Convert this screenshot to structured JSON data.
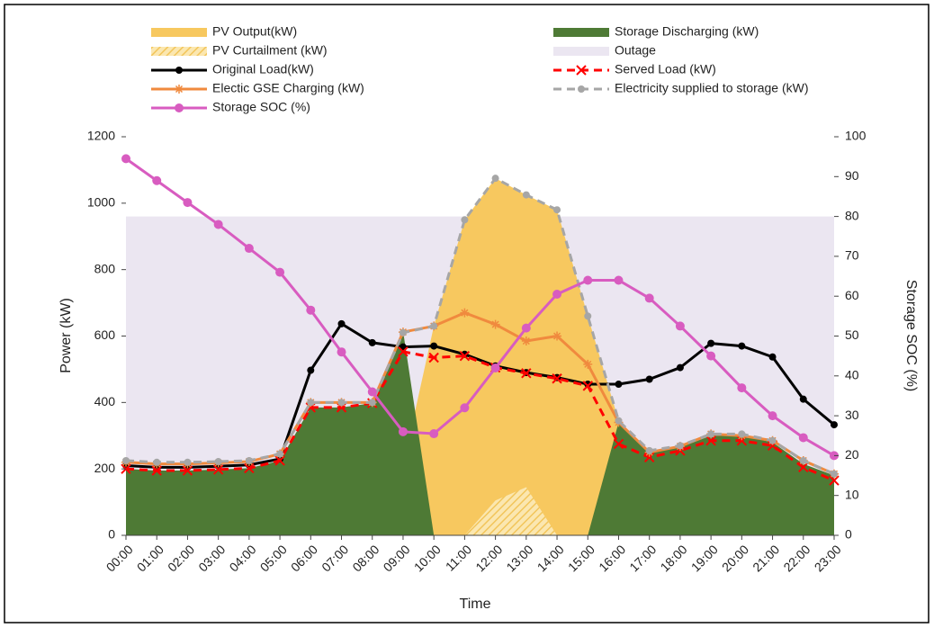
{
  "chart_data": {
    "type": "combo",
    "xlabel": "Time",
    "ylabel": "Power (kW)",
    "y2label": "Storage SOC (%)",
    "categories": [
      "00:00",
      "01:00",
      "02:00",
      "03:00",
      "04:00",
      "05:00",
      "06:00",
      "07:00",
      "08:00",
      "09:00",
      "10:00",
      "11:00",
      "12:00",
      "13:00",
      "14:00",
      "15:00",
      "16:00",
      "17:00",
      "18:00",
      "19:00",
      "20:00",
      "21:00",
      "22:00",
      "23:00"
    ],
    "ylim": [
      0,
      1200
    ],
    "yticks": [
      0,
      200,
      400,
      600,
      800,
      1000,
      1200
    ],
    "y2lim": [
      0,
      100
    ],
    "y2ticks": [
      0,
      10,
      20,
      30,
      40,
      50,
      60,
      70,
      80,
      90,
      100
    ],
    "series": [
      {
        "name": "PV Output(kW)",
        "kind": "area",
        "color": "#f7c85f",
        "values": [
          0,
          0,
          0,
          0,
          0,
          0,
          0,
          0,
          0,
          210,
          630,
          950,
          1075,
          1025,
          980,
          660,
          345,
          80,
          0,
          0,
          0,
          0,
          0,
          0
        ]
      },
      {
        "name": "Storage Discharging (kW)",
        "kind": "area",
        "color": "#4e7a35",
        "values": [
          200,
          195,
          195,
          198,
          202,
          225,
          385,
          385,
          398,
          615,
          0,
          0,
          0,
          0,
          0,
          0,
          340,
          250,
          265,
          300,
          300,
          280,
          215,
          180
        ]
      },
      {
        "name": "PV Curtailment (kW)",
        "kind": "area",
        "stack": true,
        "color": "#f7d98a",
        "values": [
          0,
          0,
          0,
          0,
          0,
          0,
          0,
          0,
          0,
          0,
          0,
          0,
          105,
          145,
          0,
          0,
          0,
          0,
          0,
          0,
          0,
          0,
          0,
          0
        ]
      },
      {
        "name": "Outage",
        "kind": "band",
        "color": "#ebe6f1",
        "value": 960
      },
      {
        "name": "Original Load(kW)",
        "kind": "line",
        "marker": "circle",
        "color": "#000000",
        "values": [
          210,
          205,
          205,
          208,
          212,
          230,
          497,
          637,
          580,
          567,
          570,
          545,
          510,
          490,
          475,
          455,
          455,
          470,
          505,
          578,
          570,
          537,
          410,
          333
        ]
      },
      {
        "name": "Served Load (kW)",
        "kind": "line",
        "marker": "x",
        "dashed": true,
        "color": "#ff0000",
        "values": [
          200,
          195,
          195,
          198,
          202,
          225,
          385,
          385,
          398,
          553,
          535,
          540,
          505,
          488,
          472,
          450,
          275,
          235,
          255,
          285,
          285,
          270,
          205,
          165
        ]
      },
      {
        "name": "Electic GSE Charging (kW)",
        "kind": "line",
        "marker": "asterisk",
        "color": "#f08a3e",
        "values": [
          220,
          215,
          215,
          218,
          222,
          245,
          400,
          400,
          400,
          612,
          630,
          670,
          635,
          585,
          600,
          515,
          340,
          250,
          268,
          305,
          300,
          285,
          225,
          185
        ]
      },
      {
        "name": "Electricity supplied to storage (kW)",
        "kind": "line",
        "marker": "circle",
        "dashed": true,
        "color": "#a6a6a6",
        "values": [
          225,
          220,
          220,
          222,
          225,
          245,
          400,
          400,
          400,
          610,
          630,
          950,
          1075,
          1025,
          980,
          660,
          345,
          255,
          270,
          305,
          305,
          285,
          225,
          185
        ]
      },
      {
        "name": "Storage SOC (%)",
        "kind": "line",
        "marker": "circle",
        "axis": "y2",
        "color": "#d85cc0",
        "values": [
          94.5,
          89,
          83.5,
          78,
          72,
          66,
          56.5,
          46,
          36,
          26,
          25.5,
          32,
          42,
          52,
          60.5,
          64,
          64,
          59.5,
          52.5,
          45,
          37,
          30,
          24.5,
          20
        ]
      }
    ]
  }
}
